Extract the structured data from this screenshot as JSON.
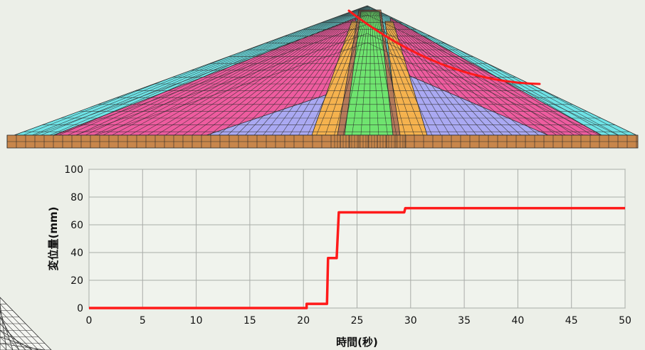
{
  "colors": {
    "background": "#ecefe8",
    "outer_shell": "#6fe3e6",
    "rockfill": "#ee5c9f",
    "transition": "#aaa9f2",
    "filter": "#f5b24e",
    "core": "#6fe46f",
    "core_edge": "#b47a5a",
    "foundation": "#c8864b",
    "mesh_line": "#2a2a2a",
    "slip_line": "#ff1a1a",
    "series_line": "#ff1a1a",
    "grid": "#a9aca8",
    "axis_bg": "#f4f5f1"
  },
  "icons": {
    "corner": "triangle-mesh-icon"
  },
  "chart_data": {
    "type": "line",
    "title": "",
    "xlabel": "時間(秒)",
    "ylabel": "変位量(mm)",
    "xlim": [
      0,
      50
    ],
    "ylim": [
      0,
      100
    ],
    "xticks": [
      0,
      5,
      10,
      15,
      20,
      25,
      30,
      35,
      40,
      45,
      50
    ],
    "yticks": [
      0,
      20,
      40,
      60,
      80,
      100
    ],
    "grid": true,
    "legend": "none",
    "series": [
      {
        "x": [
          0,
          20.3,
          20.3,
          22.2,
          22.3,
          22.6,
          23.1,
          23.3,
          29.4,
          29.5,
          50
        ],
        "y": [
          0,
          0,
          3,
          3,
          36,
          36,
          36,
          69,
          69,
          72,
          72
        ]
      }
    ]
  }
}
